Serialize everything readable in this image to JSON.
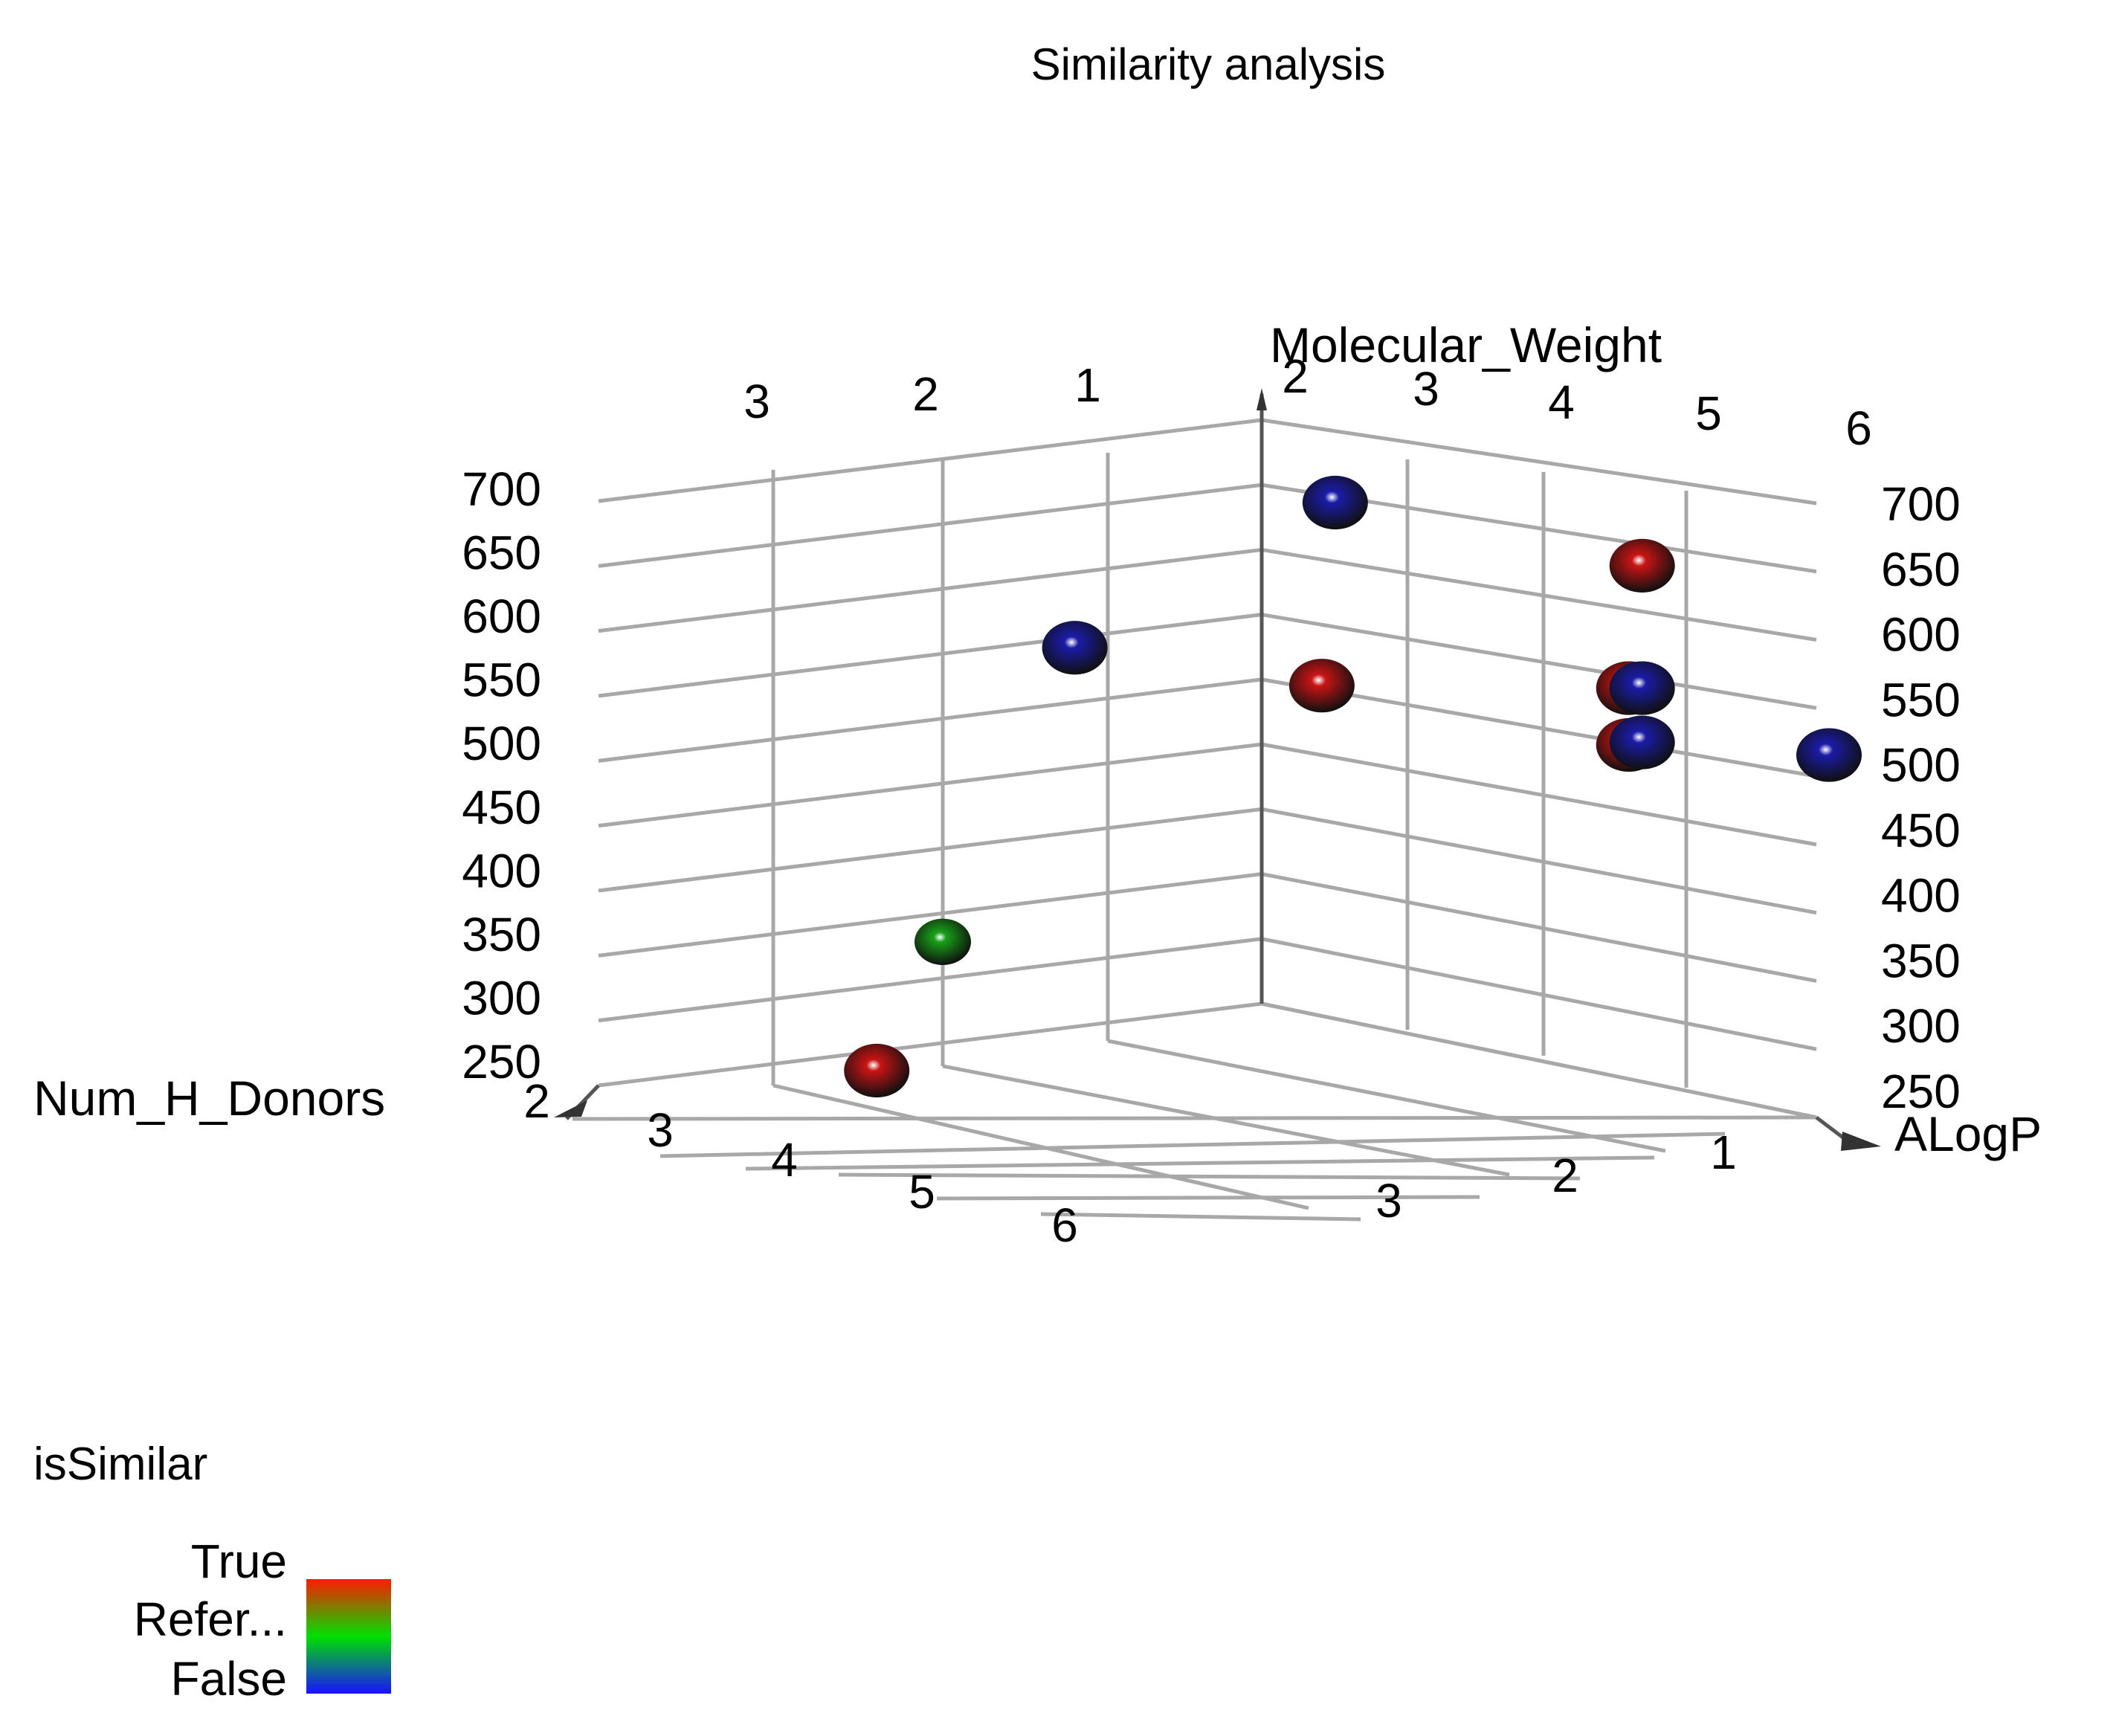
{
  "chart_data": {
    "type": "scatter3d",
    "title": "Similarity analysis",
    "axes": {
      "x": {
        "label": "ALogP",
        "ticks": [
          "1",
          "2",
          "3"
        ]
      },
      "y": {
        "label": "Num_H_Donors",
        "ticks": [
          "2",
          "3",
          "4",
          "5",
          "6"
        ]
      },
      "z": {
        "label": "Molecular_Weight",
        "ticks": [
          "250",
          "300",
          "350",
          "400",
          "450",
          "500",
          "550",
          "600",
          "650",
          "700"
        ]
      },
      "back_left_ticks": [
        "3",
        "2",
        "1"
      ],
      "back_right_ticks": [
        "2",
        "3",
        "4",
        "5",
        "6"
      ]
    },
    "points": [
      {
        "category": "False",
        "color": "#1b1ba8",
        "num_h_donors": 2.3,
        "molecular_weight": 700
      },
      {
        "category": "True",
        "color": "#c81414",
        "num_h_donors": 4.6,
        "molecular_weight": 650
      },
      {
        "category": "False",
        "color": "#1b1ba8",
        "num_h_donors": 1.8,
        "molecular_weight": 585
      },
      {
        "category": "True",
        "color": "#c81414",
        "num_h_donors": 2.2,
        "molecular_weight": 555
      },
      {
        "category": "True",
        "color": "#c81414",
        "num_h_donors": 4.5,
        "molecular_weight": 553
      },
      {
        "category": "False",
        "color": "#1b1ba8",
        "num_h_donors": 4.6,
        "molecular_weight": 553
      },
      {
        "category": "True",
        "color": "#c81414",
        "num_h_donors": 4.5,
        "molecular_weight": 508
      },
      {
        "category": "False",
        "color": "#1b1ba8",
        "num_h_donors": 4.6,
        "molecular_weight": 510
      },
      {
        "category": "False",
        "color": "#1b1ba8",
        "num_h_donors": 6.0,
        "molecular_weight": 500
      },
      {
        "category": "Reference",
        "color": "#18a018",
        "num_h_donors": 1.0,
        "molecular_weight": 352
      },
      {
        "category": "True",
        "color": "#c81414",
        "num_h_donors": 0.6,
        "molecular_weight": 250
      }
    ],
    "legend": {
      "title": "isSimilar",
      "entries": [
        "True",
        "Refer...",
        "False"
      ],
      "colors": [
        "#ff1a00",
        "#00e000",
        "#1a10ff"
      ],
      "position": "bottom-left"
    }
  }
}
